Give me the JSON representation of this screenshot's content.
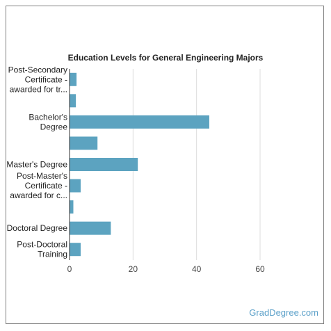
{
  "chart_data": {
    "type": "bar",
    "orientation": "horizontal",
    "title": "Education Levels for General Engineering Majors",
    "xlabel": "",
    "ylabel": "",
    "xlim": [
      0,
      60
    ],
    "x_ticks": [
      0,
      20,
      40,
      60
    ],
    "grid": true,
    "legend": "none",
    "categories": [
      [
        "Post-Secondary",
        "Certificate -",
        "awarded for tr..."
      ],
      [],
      [
        "Bachelor's",
        "Degree"
      ],
      [],
      [
        "Master's Degree"
      ],
      [
        "Post-Master's",
        "Certificate -",
        "awarded for c..."
      ],
      [],
      [
        "Doctoral Degree"
      ],
      [
        "Post-Doctoral",
        "Training"
      ]
    ],
    "values": [
      2.2,
      2.0,
      44.0,
      8.8,
      21.5,
      3.5,
      1.2,
      13.0,
      3.5
    ],
    "bar_color": "#5ca3c0"
  },
  "brand": "GradDegree.com"
}
